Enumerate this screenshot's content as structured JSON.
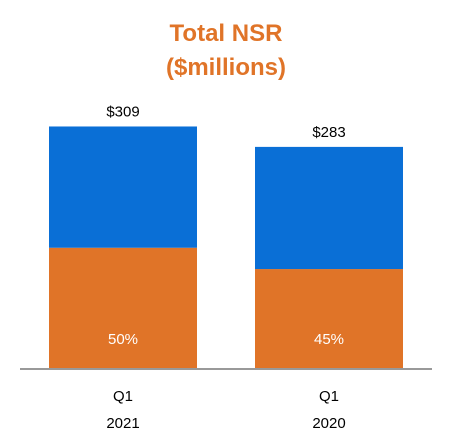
{
  "colors": {
    "accent": "#E07428",
    "blue": "#0A6FD6",
    "orange": "#E07428",
    "baseline": "#999999"
  },
  "chart_data": {
    "type": "bar",
    "stacked": true,
    "title": "Total NSR",
    "subtitle": "($millions)",
    "categories": [
      {
        "line1": "Q1",
        "line2": "2021"
      },
      {
        "line1": "Q1",
        "line2": "2020"
      }
    ],
    "totals": [
      309,
      283
    ],
    "total_labels": [
      "$309",
      "$283"
    ],
    "series": [
      {
        "color": "#E07428",
        "share": [
          0.5,
          0.45
        ],
        "labels": [
          "50%",
          "45%"
        ]
      },
      {
        "color": "#0A6FD6",
        "share": [
          0.5,
          0.55
        ]
      }
    ],
    "ylim": [
      0,
      330
    ],
    "grid": false,
    "legend": "none"
  }
}
